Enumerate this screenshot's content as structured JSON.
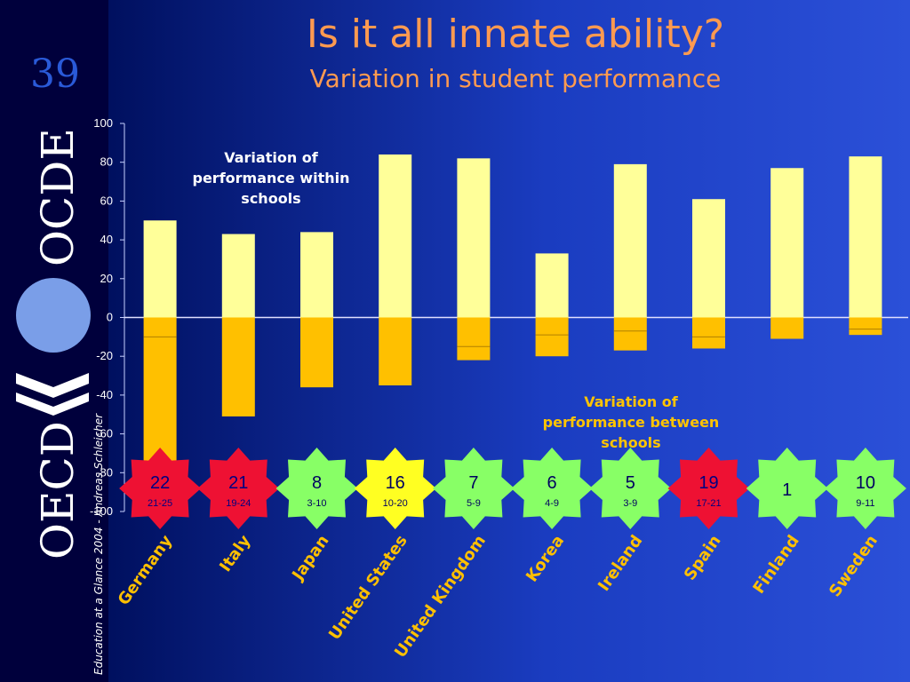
{
  "slide": {
    "number": "39",
    "title": "Is it all innate ability?",
    "subtitle": "Variation in student performance"
  },
  "logo": {
    "text_top": "OECD",
    "text_bottom": "OCDE"
  },
  "credit": "Education at a Glance 2004 - Andreas Schleicher",
  "annotations": {
    "within": "Variation of performance within schools",
    "between": "Variation of performance between schools"
  },
  "colors": {
    "within": "#ffff99",
    "between": "#ffc000",
    "badge_red": "#ee1133",
    "badge_green": "#88ff66",
    "badge_yellow": "#ffff22",
    "label": "#ffc000"
  },
  "chart_data": {
    "type": "bar",
    "categories": [
      "Germany",
      "Italy",
      "Japan",
      "United States",
      "United Kingdom",
      "Korea",
      "Ireland",
      "Spain",
      "Finland",
      "Sweden"
    ],
    "series": [
      {
        "name": "Variation of performance within schools",
        "values": [
          50,
          43,
          44,
          84,
          82,
          33,
          79,
          61,
          77,
          83
        ]
      },
      {
        "name": "Variation of performance between schools",
        "values": [
          -78,
          -51,
          -36,
          -35,
          -22,
          -20,
          -17,
          -16,
          -11,
          -9
        ]
      }
    ],
    "between_marker": [
      -10,
      null,
      null,
      null,
      -15,
      -9,
      -7,
      -10,
      null,
      -6
    ],
    "ylim": [
      -100,
      100
    ],
    "yticks": [
      100,
      80,
      60,
      40,
      20,
      0,
      -20,
      -40,
      -60,
      -80,
      -100
    ],
    "ytick_labels": [
      "100",
      "80",
      "60",
      "40",
      "20",
      "0",
      "-20",
      "-40",
      "-60",
      "-80",
      "-100"
    ],
    "badges": [
      {
        "rank": "22",
        "range": "21-25",
        "color": "red"
      },
      {
        "rank": "21",
        "range": "19-24",
        "color": "red"
      },
      {
        "rank": "8",
        "range": "3-10",
        "color": "green"
      },
      {
        "rank": "16",
        "range": "10-20",
        "color": "yellow"
      },
      {
        "rank": "7",
        "range": "5-9",
        "color": "green"
      },
      {
        "rank": "6",
        "range": "4-9",
        "color": "green"
      },
      {
        "rank": "5",
        "range": "3-9",
        "color": "green"
      },
      {
        "rank": "19",
        "range": "17-21",
        "color": "red"
      },
      {
        "rank": "1",
        "range": "",
        "color": "green"
      },
      {
        "rank": "10",
        "range": "9-11",
        "color": "green"
      }
    ]
  }
}
